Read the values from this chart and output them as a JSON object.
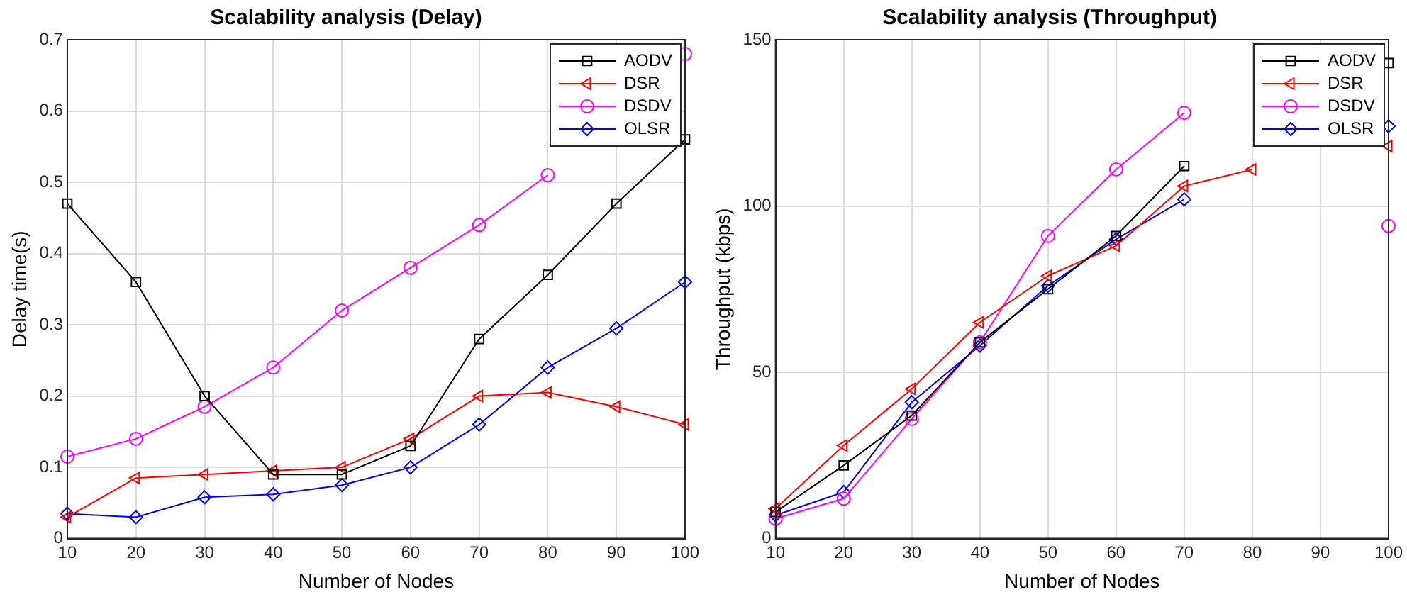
{
  "chart_data": [
    {
      "type": "line",
      "title": "Scalability analysis (Delay)",
      "xlabel": "Number of Nodes",
      "ylabel": "Delay time(s)",
      "x": [
        10,
        20,
        30,
        40,
        50,
        60,
        70,
        80,
        90,
        100
      ],
      "xlim": [
        10,
        100
      ],
      "xticks": [
        10,
        20,
        30,
        40,
        50,
        60,
        70,
        80,
        90,
        100
      ],
      "ylim": [
        0,
        0.7
      ],
      "yticks": [
        0,
        0.1,
        0.2,
        0.3,
        0.4,
        0.5,
        0.6,
        0.7
      ],
      "grid": true,
      "legend": "top right",
      "series": [
        {
          "name": "AODV",
          "color": "#000000",
          "marker": "square",
          "values": [
            0.47,
            0.36,
            0.2,
            0.09,
            0.09,
            0.13,
            0.28,
            0.37,
            0.47,
            0.56
          ]
        },
        {
          "name": "DSR",
          "color": "#ff0000",
          "marker": "triangle",
          "values": [
            0.03,
            0.085,
            0.09,
            0.095,
            0.1,
            0.14,
            0.2,
            0.205,
            0.185,
            0.16
          ]
        },
        {
          "name": "DSDV",
          "color": "#ff00ff",
          "marker": "circle",
          "values": [
            0.115,
            0.14,
            0.185,
            0.24,
            0.32,
            0.38,
            0.44,
            0.51,
            null,
            0.68
          ]
        },
        {
          "name": "OLSR",
          "color": "#0000ff",
          "marker": "diamond",
          "values": [
            0.035,
            0.03,
            0.058,
            0.062,
            0.075,
            0.1,
            0.16,
            0.24,
            0.295,
            0.36
          ]
        }
      ]
    },
    {
      "type": "line",
      "title": "Scalability analysis (Throughput)",
      "xlabel": "Number of Nodes",
      "ylabel": "Throughput (kbps)",
      "x": [
        10,
        20,
        30,
        40,
        50,
        60,
        70,
        80,
        90,
        100
      ],
      "xlim": [
        10,
        100
      ],
      "xticks": [
        10,
        20,
        30,
        40,
        50,
        60,
        70,
        80,
        90,
        100
      ],
      "ylim": [
        0,
        150
      ],
      "yticks": [
        0,
        50,
        100,
        150
      ],
      "grid": true,
      "legend": "top right",
      "series": [
        {
          "name": "AODV",
          "color": "#000000",
          "marker": "square",
          "values": [
            8,
            22,
            37,
            59,
            75,
            91,
            112,
            null,
            null,
            143
          ]
        },
        {
          "name": "DSR",
          "color": "#ff0000",
          "marker": "triangle",
          "values": [
            9,
            28,
            45,
            65,
            79,
            88,
            106,
            111,
            null,
            118
          ]
        },
        {
          "name": "DSDV",
          "color": "#ff00ff",
          "marker": "circle",
          "values": [
            6,
            12,
            36,
            59,
            91,
            111,
            128,
            null,
            null,
            94
          ]
        },
        {
          "name": "OLSR",
          "color": "#0000ff",
          "marker": "diamond",
          "values": [
            7,
            14,
            41,
            58,
            76,
            90,
            102,
            null,
            null,
            124
          ]
        }
      ]
    }
  ]
}
